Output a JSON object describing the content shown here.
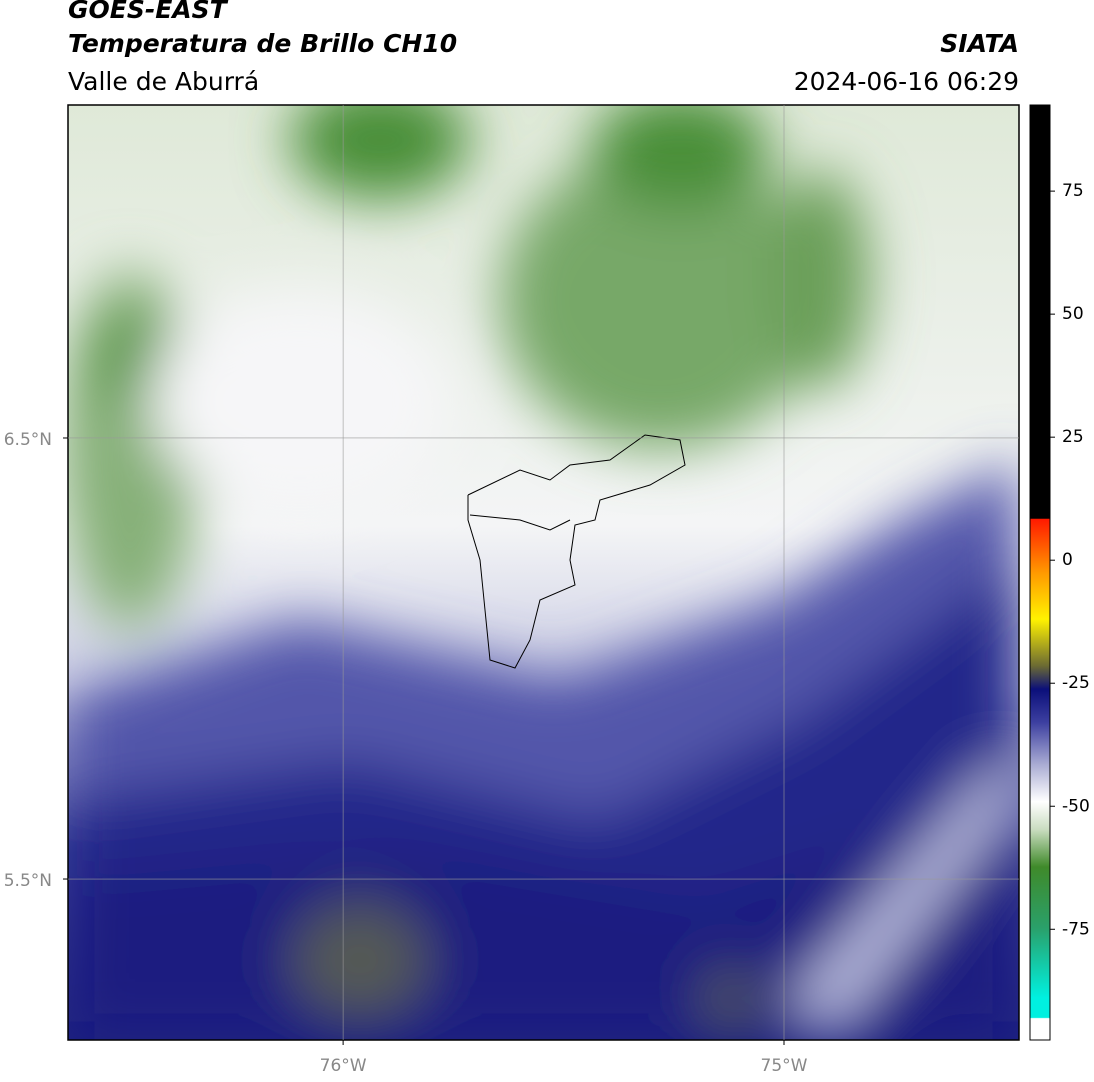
{
  "header": {
    "title": "GOES-EAST",
    "subtitle": "Temperatura de Brillo CH10",
    "region": "Valle de Aburrá",
    "source": "SIATA",
    "datetime": "2024-06-16 06:29"
  },
  "map": {
    "xlim": [
      -76.624,
      -74.467
    ],
    "ylim": [
      5.135,
      7.255
    ],
    "xticks": [
      {
        "value": -76,
        "label": "76°W"
      },
      {
        "value": -75,
        "label": "75°W"
      }
    ],
    "yticks": [
      {
        "value": 6.5,
        "label": "6.5°N"
      },
      {
        "value": 5.5,
        "label": "5.5°N"
      }
    ]
  },
  "colorbar": {
    "lim": [
      -97.5,
      92.5
    ],
    "ticks": [
      75,
      50,
      25,
      0,
      -25,
      -50,
      -75
    ]
  }
}
